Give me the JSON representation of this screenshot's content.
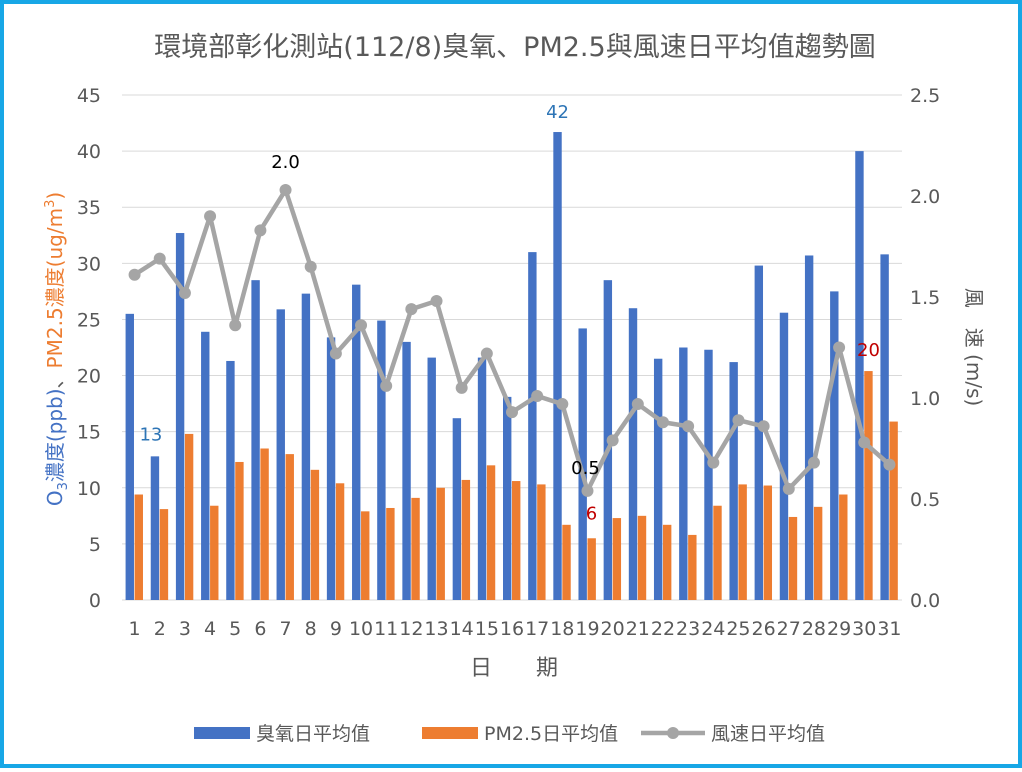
{
  "chart_data": {
    "type": "bar",
    "title": "環境部彰化測站(112/8)臭氧、PM2.5與風速日平均值趨勢圖",
    "xlabel": "日　　期",
    "ylabel_left_parts": [
      "O",
      "3",
      "濃度(ppb)",
      "、",
      "PM2.5濃度(ug/m",
      "3",
      ")"
    ],
    "ylabel_right": "風　速 (m/s)",
    "categories": [
      "1",
      "2",
      "3",
      "4",
      "5",
      "6",
      "7",
      "8",
      "9",
      "10",
      "11",
      "12",
      "13",
      "14",
      "15",
      "16",
      "17",
      "18",
      "19",
      "20",
      "21",
      "22",
      "23",
      "24",
      "25",
      "26",
      "27",
      "28",
      "29",
      "30",
      "31"
    ],
    "yticks_left": [
      "0",
      "5",
      "10",
      "15",
      "20",
      "25",
      "30",
      "35",
      "40",
      "45"
    ],
    "yticks_right": [
      "0.0",
      "0.5",
      "1.0",
      "1.5",
      "2.0",
      "2.5"
    ],
    "ylim_left": [
      0,
      45
    ],
    "ylim_right": [
      0,
      2.5
    ],
    "grid": true,
    "legend_position": "bottom",
    "series": [
      {
        "name": "臭氧日平均值",
        "type": "bar",
        "axis": "left",
        "color": "#4472c4",
        "values": [
          25.5,
          12.8,
          32.7,
          23.9,
          21.3,
          28.5,
          25.9,
          27.3,
          23.4,
          28.1,
          24.9,
          23.0,
          21.6,
          16.2,
          21.6,
          18.1,
          31.0,
          41.7,
          24.2,
          28.5,
          26.0,
          21.5,
          22.5,
          22.3,
          21.2,
          29.8,
          25.6,
          30.7,
          27.5,
          40.0,
          30.8
        ]
      },
      {
        "name": "PM2.5日平均值",
        "type": "bar",
        "axis": "left",
        "color": "#ed7d31",
        "values": [
          9.4,
          8.1,
          14.8,
          8.4,
          12.3,
          13.5,
          13.0,
          11.6,
          10.4,
          7.9,
          8.2,
          9.1,
          10.0,
          10.7,
          12.0,
          10.6,
          10.3,
          6.7,
          5.5,
          7.3,
          7.5,
          6.7,
          5.8,
          8.4,
          10.3,
          10.2,
          7.4,
          8.3,
          9.4,
          20.4,
          15.9
        ]
      },
      {
        "name": "風速日平均值",
        "type": "line",
        "axis": "right",
        "color": "#a5a5a5",
        "values": [
          1.61,
          1.69,
          1.52,
          1.9,
          1.36,
          1.83,
          2.03,
          1.65,
          1.22,
          1.36,
          1.06,
          1.44,
          1.48,
          1.05,
          1.22,
          0.93,
          1.01,
          0.97,
          0.54,
          0.79,
          0.97,
          0.88,
          0.86,
          0.68,
          0.89,
          0.86,
          0.55,
          0.68,
          1.25,
          0.78,
          0.67
        ]
      }
    ],
    "annotations": [
      {
        "text": "13",
        "day": "2",
        "series": "臭氧日平均值",
        "color": "#2e75b6"
      },
      {
        "text": "42",
        "day": "18",
        "series": "臭氧日平均值",
        "color": "#2e75b6"
      },
      {
        "text": "6",
        "day": "19",
        "series": "PM2.5日平均值",
        "color": "#c00000"
      },
      {
        "text": "20",
        "day": "30",
        "series": "PM2.5日平均值",
        "color": "#c00000"
      },
      {
        "text": "2.0",
        "day": "7",
        "series": "風速日平均值",
        "color": "#000000"
      },
      {
        "text": "0.5",
        "day": "19",
        "series": "風速日平均值",
        "color": "#000000"
      }
    ],
    "colors": {
      "text": "#595959",
      "ylabel_o3": "#4472c4",
      "ylabel_pm": "#ed7d31",
      "grid": "#d9d9d9",
      "frame": "#17a7e6"
    }
  }
}
